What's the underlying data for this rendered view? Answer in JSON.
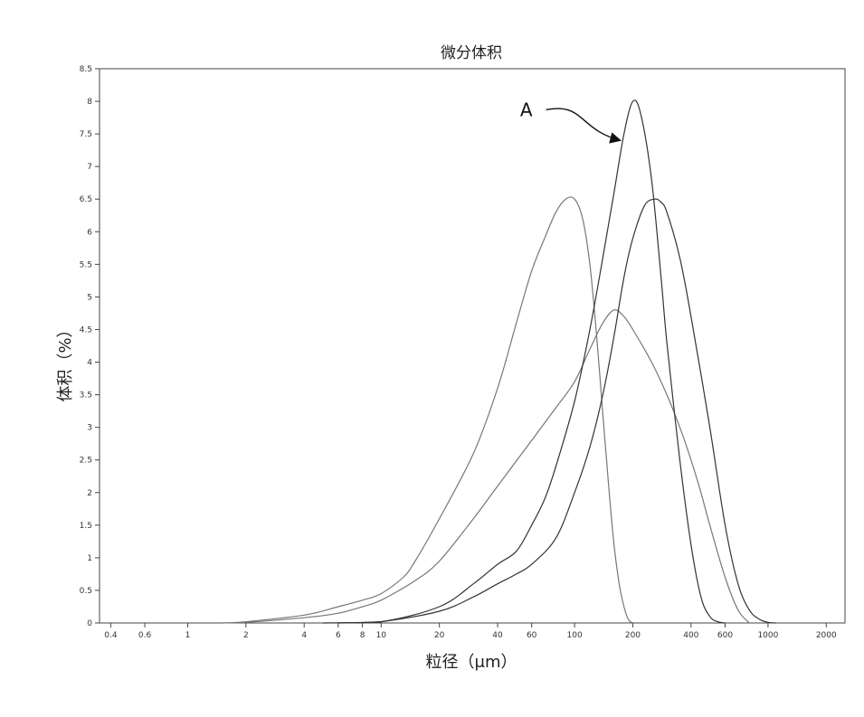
{
  "chart_data": {
    "type": "line",
    "title": "微分体积",
    "xlabel": "粒径（μm）",
    "ylabel": "体积（%）",
    "xscale": "log",
    "xlim": [
      0.35,
      2500
    ],
    "ylim": [
      0,
      8.5
    ],
    "xticks": [
      {
        "value": 0.4,
        "label": "0.4"
      },
      {
        "value": 0.6,
        "label": "0.6"
      },
      {
        "value": 1,
        "label": "1"
      },
      {
        "value": 2,
        "label": "2"
      },
      {
        "value": 4,
        "label": "4"
      },
      {
        "value": 6,
        "label": "6"
      },
      {
        "value": 8,
        "label": "8"
      },
      {
        "value": 10,
        "label": "10"
      },
      {
        "value": 20,
        "label": "20"
      },
      {
        "value": 40,
        "label": "40"
      },
      {
        "value": 60,
        "label": "60"
      },
      {
        "value": 100,
        "label": "100"
      },
      {
        "value": 200,
        "label": "200"
      },
      {
        "value": 400,
        "label": "400"
      },
      {
        "value": 600,
        "label": "600"
      },
      {
        "value": 1000,
        "label": "1000"
      },
      {
        "value": 2000,
        "label": "2000"
      }
    ],
    "yticks": [
      {
        "value": 0,
        "label": "0"
      },
      {
        "value": 0.5,
        "label": "0.5"
      },
      {
        "value": 1,
        "label": "1"
      },
      {
        "value": 1.5,
        "label": "1.5"
      },
      {
        "value": 2,
        "label": "2"
      },
      {
        "value": 2.5,
        "label": "2.5"
      },
      {
        "value": 3,
        "label": "3"
      },
      {
        "value": 3.5,
        "label": "3.5"
      },
      {
        "value": 4,
        "label": "4"
      },
      {
        "value": 4.5,
        "label": "4.5"
      },
      {
        "value": 5,
        "label": "5"
      },
      {
        "value": 5.5,
        "label": "5.5"
      },
      {
        "value": 6,
        "label": "6"
      },
      {
        "value": 6.5,
        "label": "6.5"
      },
      {
        "value": 7,
        "label": "7"
      },
      {
        "value": 7.5,
        "label": "7.5"
      },
      {
        "value": 8,
        "label": "8"
      },
      {
        "value": 8.5,
        "label": "8.5"
      }
    ],
    "grid": false,
    "legend": "none",
    "series": [
      {
        "color": "#777777",
        "x": [
          1.5,
          2,
          4,
          6,
          8,
          10,
          13,
          15,
          20,
          30,
          40,
          50,
          60,
          70,
          80,
          90,
          100,
          110,
          120,
          130,
          140,
          150,
          160,
          170,
          180,
          190,
          200
        ],
        "y": [
          0,
          0.02,
          0.12,
          0.25,
          0.35,
          0.45,
          0.7,
          0.95,
          1.6,
          2.6,
          3.6,
          4.6,
          5.4,
          5.9,
          6.3,
          6.5,
          6.5,
          6.2,
          5.5,
          4.4,
          3.2,
          2.1,
          1.2,
          0.6,
          0.25,
          0.05,
          0
        ]
      },
      {
        "color": "#777777",
        "x": [
          1.5,
          2,
          4,
          6,
          8,
          10,
          15,
          20,
          30,
          40,
          60,
          80,
          100,
          120,
          140,
          160,
          180,
          200,
          250,
          300,
          350,
          400,
          450,
          500,
          600,
          700,
          800
        ],
        "y": [
          0,
          0.01,
          0.08,
          0.15,
          0.25,
          0.35,
          0.65,
          0.95,
          1.6,
          2.1,
          2.8,
          3.3,
          3.7,
          4.2,
          4.6,
          4.8,
          4.7,
          4.5,
          4.0,
          3.5,
          3.0,
          2.5,
          2.0,
          1.5,
          0.7,
          0.2,
          0
        ]
      },
      {
        "color": "#333333",
        "x": [
          5,
          10,
          20,
          30,
          40,
          50,
          60,
          70,
          80,
          100,
          120,
          140,
          160,
          180,
          200,
          220,
          250,
          280,
          300,
          350,
          400,
          450,
          500,
          550,
          600
        ],
        "y": [
          0,
          0.02,
          0.25,
          0.6,
          0.9,
          1.1,
          1.5,
          1.9,
          2.4,
          3.4,
          4.5,
          5.6,
          6.6,
          7.5,
          8.0,
          7.8,
          6.8,
          5.3,
          4.3,
          2.5,
          1.2,
          0.4,
          0.1,
          0.02,
          0
        ]
      },
      {
        "color": "#333333",
        "x": [
          6,
          10,
          20,
          30,
          40,
          50,
          60,
          80,
          100,
          120,
          140,
          160,
          180,
          200,
          230,
          260,
          280,
          300,
          350,
          400,
          500,
          600,
          700,
          800,
          900,
          1000,
          1100
        ],
        "y": [
          0,
          0.02,
          0.18,
          0.4,
          0.6,
          0.75,
          0.9,
          1.3,
          2.0,
          2.7,
          3.5,
          4.4,
          5.3,
          5.9,
          6.4,
          6.5,
          6.45,
          6.3,
          5.6,
          4.7,
          3.0,
          1.5,
          0.6,
          0.2,
          0.06,
          0.01,
          0
        ]
      }
    ],
    "annotations": [
      {
        "text": "A",
        "target_x": 180,
        "target_y": 7.4
      }
    ]
  }
}
